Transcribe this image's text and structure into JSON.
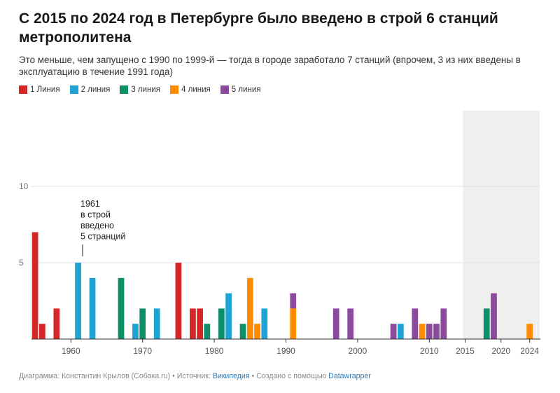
{
  "header": {
    "title": "С 2015 по 2024 год в Петербурге было введено в строй 6 станций метрополитена",
    "subtitle": "Это меньше, чем запущено с 1990 по 1999-й — тогда в городе заработало 7 станций (впрочем, 3 из них введены в эксплуатацию в течение 1991 года)"
  },
  "legend": [
    {
      "label": "1 Линия",
      "color": "#d62728"
    },
    {
      "label": "2 линия",
      "color": "#1fa3d4"
    },
    {
      "label": "3 линия",
      "color": "#0f8e6a"
    },
    {
      "label": "4 линия",
      "color": "#ff8c00"
    },
    {
      "label": "5 линия",
      "color": "#8c4a9e"
    }
  ],
  "annotation": {
    "lines": [
      "1961",
      "в строй",
      "введено",
      "5 странций"
    ]
  },
  "footer": {
    "prefix": "Диаграмма: Константин Крылов (Собака.ru) • Источник: ",
    "source": "Википедия",
    "middle": " • Создано с помощью ",
    "tool": "Datawrapper"
  },
  "chart_data": {
    "type": "bar",
    "stacked": true,
    "xlabel": "",
    "ylabel": "",
    "ylim": [
      0,
      10
    ],
    "yticks": [
      5,
      10
    ],
    "xlim": [
      1954.5,
      2025.5
    ],
    "xticks": [
      1960,
      1970,
      1980,
      1990,
      2000,
      2010,
      2015,
      2020,
      2024
    ],
    "highlight_range": [
      2015,
      2024
    ],
    "series": [
      {
        "name": "1 Линия",
        "color": "#d62728",
        "points": [
          [
            1955,
            7
          ],
          [
            1956,
            1
          ],
          [
            1958,
            2
          ],
          [
            1975,
            5
          ],
          [
            1977,
            2
          ],
          [
            1978,
            2
          ]
        ]
      },
      {
        "name": "2 линия",
        "color": "#1fa3d4",
        "points": [
          [
            1961,
            5
          ],
          [
            1963,
            4
          ],
          [
            1969,
            1
          ],
          [
            1972,
            2
          ],
          [
            1982,
            3
          ],
          [
            1987,
            2
          ],
          [
            2006,
            1
          ]
        ]
      },
      {
        "name": "3 линия",
        "color": "#0f8e6a",
        "points": [
          [
            1967,
            4
          ],
          [
            1970,
            2
          ],
          [
            1979,
            1
          ],
          [
            1981,
            2
          ],
          [
            1984,
            1
          ],
          [
            2018,
            2
          ]
        ]
      },
      {
        "name": "4 линия",
        "color": "#ff8c00",
        "points": [
          [
            1985,
            4
          ],
          [
            1986,
            1
          ],
          [
            1991,
            2
          ],
          [
            2009,
            1
          ],
          [
            2024,
            1
          ]
        ]
      },
      {
        "name": "5 линия",
        "color": "#8c4a9e",
        "points": [
          [
            1991,
            1
          ],
          [
            1997,
            2
          ],
          [
            1999,
            2
          ],
          [
            2005,
            1
          ],
          [
            2008,
            2
          ],
          [
            2010,
            1
          ],
          [
            2011,
            1
          ],
          [
            2012,
            2
          ],
          [
            2019,
            3
          ]
        ]
      }
    ],
    "grid": true,
    "legend_position": "top-left"
  }
}
